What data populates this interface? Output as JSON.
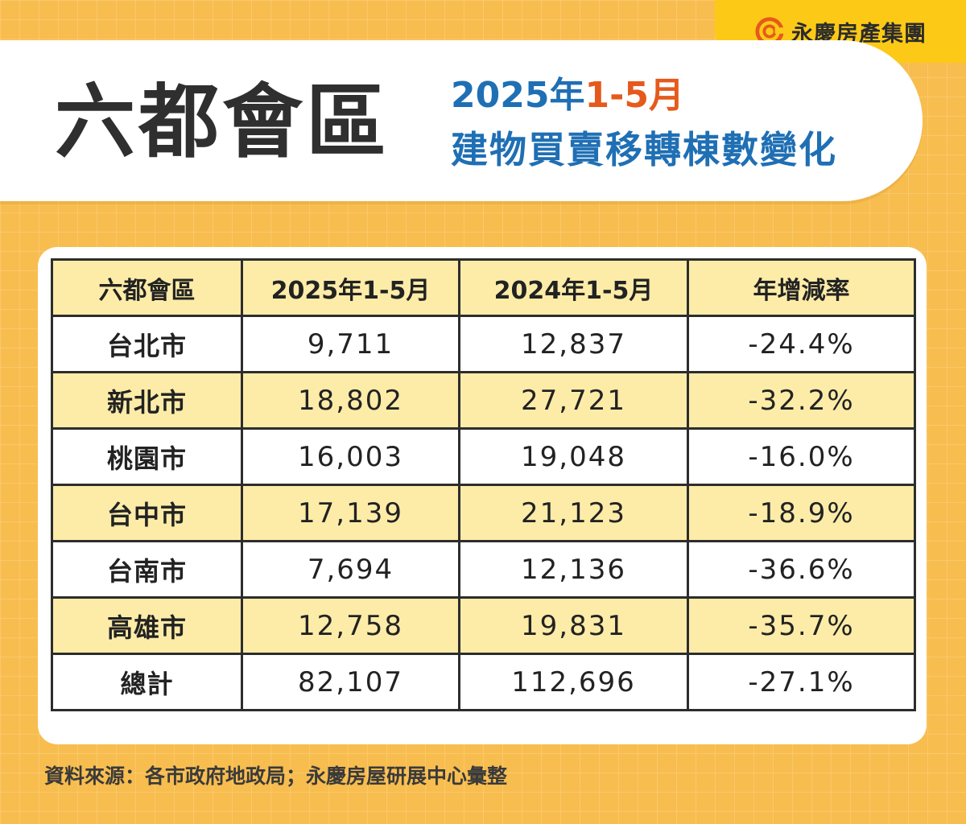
{
  "brand": {
    "logo_text": "永慶房產集團",
    "logo_icon": "swirl-logo-icon",
    "logo_color": "#e55a1c"
  },
  "title": {
    "main": "六都會區",
    "period_year": "2025年",
    "period_range": "1-5月",
    "subtitle": "建物買賣移轉棟數變化"
  },
  "colors": {
    "background": "#f8bd4f",
    "accent_blue": "#1f6fb4",
    "accent_orange": "#e55a1c",
    "header_fill": "#fdeca8",
    "logo_tab": "#fcca16"
  },
  "chart_data": {
    "type": "table",
    "columns": [
      "六都會區",
      "2025年1-5月",
      "2024年1-5月",
      "年增減率"
    ],
    "rows": [
      {
        "region": "台北市",
        "y2025": "9,711",
        "y2024": "12,837",
        "change": "-24.4%"
      },
      {
        "region": "新北市",
        "y2025": "18,802",
        "y2024": "27,721",
        "change": "-32.2%"
      },
      {
        "region": "桃園市",
        "y2025": "16,003",
        "y2024": "19,048",
        "change": "-16.0%"
      },
      {
        "region": "台中市",
        "y2025": "17,139",
        "y2024": "21,123",
        "change": "-18.9%"
      },
      {
        "region": "台南市",
        "y2025": "7,694",
        "y2024": "12,136",
        "change": "-36.6%"
      },
      {
        "region": "高雄市",
        "y2025": "12,758",
        "y2024": "19,831",
        "change": "-35.7%"
      },
      {
        "region": "總計",
        "y2025": "82,107",
        "y2024": "112,696",
        "change": "-27.1%"
      }
    ]
  },
  "source": "資料來源：各市政府地政局；永慶房屋研展中心彙整"
}
